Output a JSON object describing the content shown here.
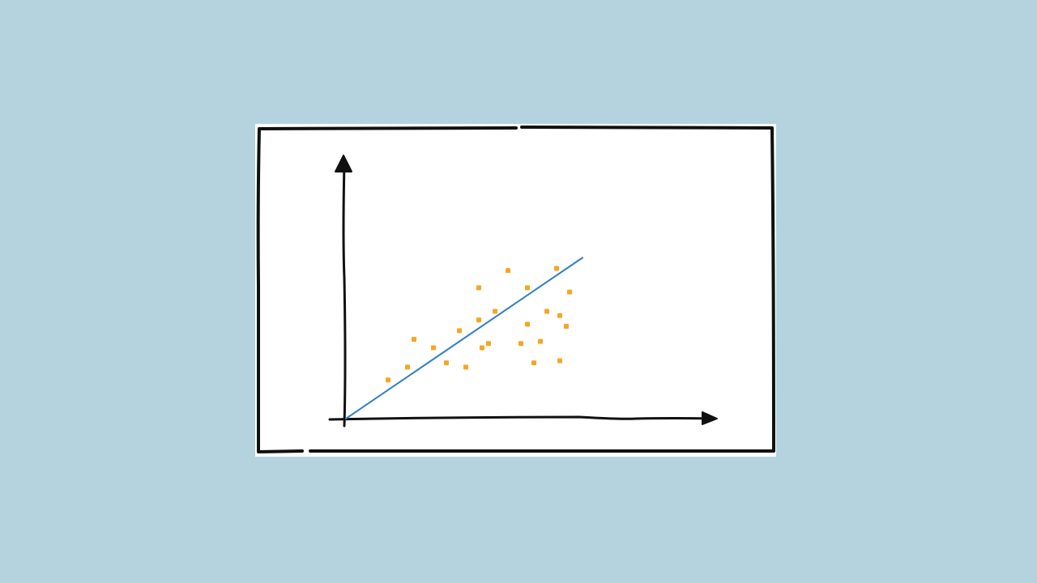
{
  "colors": {
    "background": "#b4d3df",
    "frame": "#ffffff",
    "ink": "#111111",
    "trend_line": "#2f7fc6",
    "points": "#f5a623"
  },
  "chart_data": {
    "type": "scatter",
    "style": "hand-drawn sketch",
    "title": "",
    "xlabel": "",
    "ylabel": "",
    "grid": false,
    "xlim": [
      0,
      10
    ],
    "ylim": [
      0,
      10
    ],
    "points": [
      {
        "x": 1.3,
        "y": 1.8
      },
      {
        "x": 1.9,
        "y": 2.4
      },
      {
        "x": 2.1,
        "y": 3.7
      },
      {
        "x": 2.7,
        "y": 3.3
      },
      {
        "x": 3.1,
        "y": 2.6
      },
      {
        "x": 3.5,
        "y": 4.1
      },
      {
        "x": 3.7,
        "y": 2.4
      },
      {
        "x": 4.1,
        "y": 6.1
      },
      {
        "x": 4.1,
        "y": 4.6
      },
      {
        "x": 4.2,
        "y": 3.3
      },
      {
        "x": 4.4,
        "y": 3.5
      },
      {
        "x": 4.6,
        "y": 5.0
      },
      {
        "x": 5.0,
        "y": 6.9
      },
      {
        "x": 5.4,
        "y": 3.5
      },
      {
        "x": 5.6,
        "y": 4.4
      },
      {
        "x": 5.6,
        "y": 6.1
      },
      {
        "x": 5.8,
        "y": 2.6
      },
      {
        "x": 6.0,
        "y": 3.6
      },
      {
        "x": 6.2,
        "y": 5.0
      },
      {
        "x": 6.5,
        "y": 7.0
      },
      {
        "x": 6.6,
        "y": 4.8
      },
      {
        "x": 6.6,
        "y": 2.7
      },
      {
        "x": 6.8,
        "y": 4.3
      },
      {
        "x": 6.9,
        "y": 5.9
      }
    ],
    "trend_line": {
      "x0": 0.0,
      "y0": 0.0,
      "x1": 7.3,
      "y1": 7.5
    }
  }
}
